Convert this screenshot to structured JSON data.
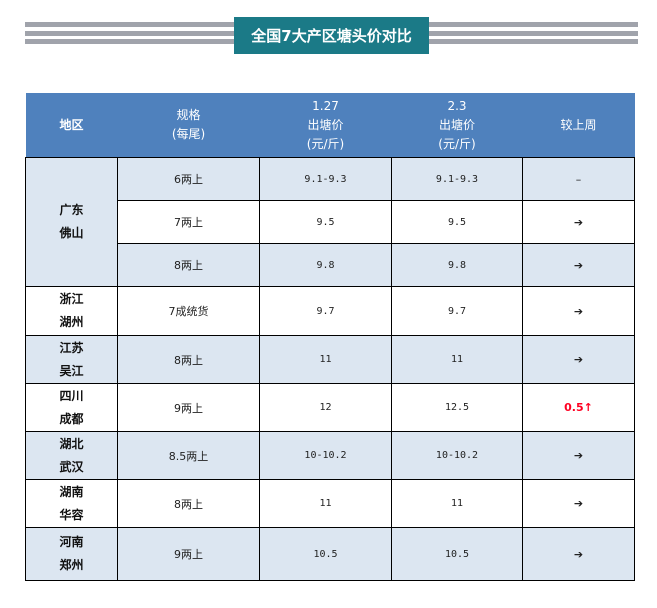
{
  "title": "全国7大产区塘头价对比",
  "colors": {
    "title_bg": "#1b7a87",
    "header_bg": "#4f81bd",
    "row_alt": "#dce6f1",
    "stripe": "#a0a3ab",
    "up": "#ff0022"
  },
  "headers": {
    "region": "地区",
    "spec_l1": "规格",
    "spec_l2": "(每尾)",
    "d1_l1": "1.27",
    "d1_l2": "出塘价",
    "d1_l3": "(元/斤)",
    "d2_l1": "2.3",
    "d2_l2": "出塘价",
    "d2_l3": "(元/斤)",
    "change": "较上周"
  },
  "rows": [
    {
      "r1": "广东",
      "r2": "佛山",
      "spec": "6两上",
      "p1": "9.1-9.3",
      "p2": "9.1-9.3",
      "change": "–"
    },
    {
      "spec": "7两上",
      "p1": "9.5",
      "p2": "9.5",
      "change": "➔"
    },
    {
      "spec": "8两上",
      "p1": "9.8",
      "p2": "9.8",
      "change": "➔"
    },
    {
      "r1": "浙江",
      "r2": "湖州",
      "spec": "7成统货",
      "p1": "9.7",
      "p2": "9.7",
      "change": "➔"
    },
    {
      "r1": "江苏",
      "r2": "吴江",
      "spec": "8两上",
      "p1": "11",
      "p2": "11",
      "change": "➔"
    },
    {
      "r1": "四川",
      "r2": "成都",
      "spec": "9两上",
      "p1": "12",
      "p2": "12.5",
      "change": "0.5↑"
    },
    {
      "r1": "湖北",
      "r2": "武汉",
      "spec": "8.5两上",
      "p1": "10-10.2",
      "p2": "10-10.2",
      "change": "➔"
    },
    {
      "r1": "湖南",
      "r2": "华容",
      "spec": "8两上",
      "p1": "11",
      "p2": "11",
      "change": "➔"
    },
    {
      "r1": "河南",
      "r2": "郑州",
      "spec": "9两上",
      "p1": "10.5",
      "p2": "10.5",
      "change": "➔"
    }
  ]
}
